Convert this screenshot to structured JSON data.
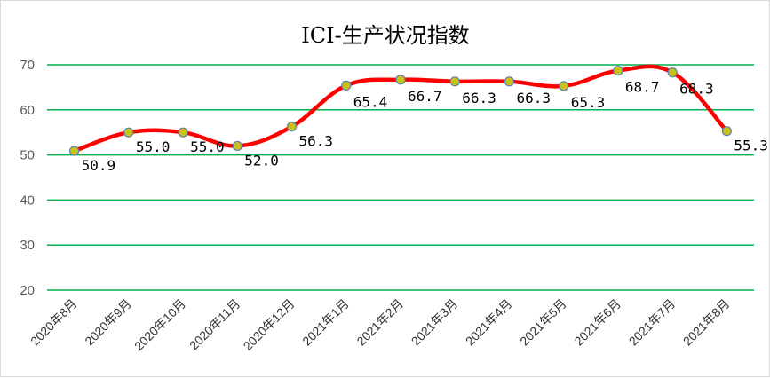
{
  "chart_data": {
    "type": "line",
    "title": "ICI-生产状况指数",
    "xlabel": "",
    "ylabel": "",
    "categories": [
      "2020年8月",
      "2020年9月",
      "2020年10月",
      "2020年11月",
      "2020年12月",
      "2021年1月",
      "2021年2月",
      "2021年3月",
      "2021年4月",
      "2021年5月",
      "2021年6月",
      "2021年7月",
      "2021年8月"
    ],
    "series": [
      {
        "values": [
          50.9,
          55.0,
          55.0,
          52.0,
          56.3,
          65.4,
          66.7,
          66.3,
          66.3,
          65.3,
          68.7,
          68.3,
          55.3
        ],
        "labels": [
          "50.9",
          "55.0",
          "55.0",
          "52.0",
          "56.3",
          "65.4",
          "66.7",
          "66.3",
          "66.3",
          "65.3",
          "68.7",
          "68.3",
          "55.3"
        ]
      }
    ],
    "yticks": [
      "20",
      "30",
      "40",
      "50",
      "60",
      "70"
    ],
    "ylim": [
      20,
      70
    ],
    "grid": true,
    "legend": "none",
    "colors": {
      "line": "#ff0000",
      "gridline": "#00b050",
      "marker_fill": "#c9c21a",
      "marker_stroke": "#5b7fb5"
    }
  }
}
